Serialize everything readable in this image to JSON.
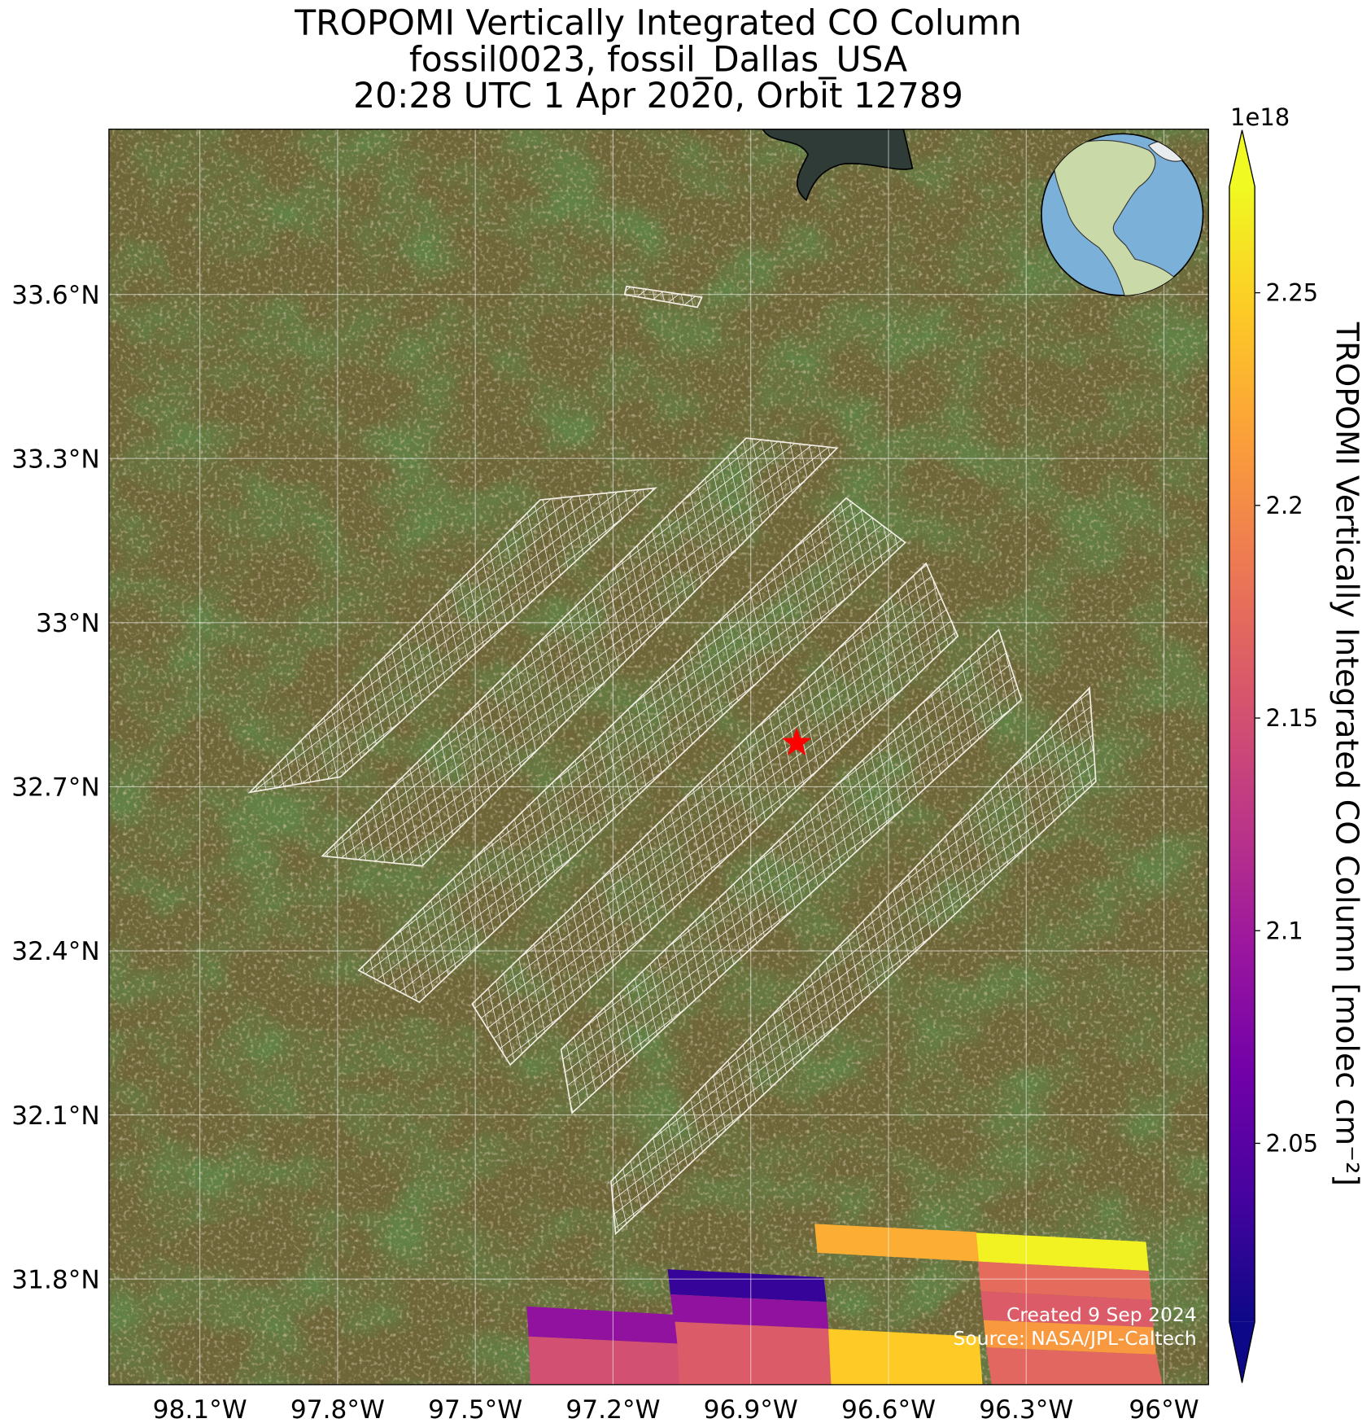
{
  "chart_data": {
    "type": "map",
    "title_lines": [
      "TROPOMI Vertically Integrated CO Column",
      "fossil0023, fossil_Dallas_USA",
      "20:28 UTC 1 Apr 2020, Orbit 12789"
    ],
    "xlim": [
      -98.298,
      -95.903
    ],
    "ylim": [
      31.607,
      33.902
    ],
    "xticks": [
      {
        "value": -98.1,
        "label": "98.1°W"
      },
      {
        "value": -97.8,
        "label": "97.8°W"
      },
      {
        "value": -97.5,
        "label": "97.5°W"
      },
      {
        "value": -97.2,
        "label": "97.2°W"
      },
      {
        "value": -96.9,
        "label": "96.9°W"
      },
      {
        "value": -96.6,
        "label": "96.6°W"
      },
      {
        "value": -96.3,
        "label": "96.3°W"
      },
      {
        "value": -96,
        "label": "96°W"
      }
    ],
    "yticks": [
      {
        "value": 31.8,
        "label": "31.8°N"
      },
      {
        "value": 32.1,
        "label": "32.1°N"
      },
      {
        "value": 32.4,
        "label": "32.4°N"
      },
      {
        "value": 32.7,
        "label": "32.7°N"
      },
      {
        "value": 33,
        "label": "33°N"
      },
      {
        "value": 33.3,
        "label": "33.3°N"
      },
      {
        "value": 33.6,
        "label": "33.6°N"
      }
    ],
    "grid": true,
    "site": {
      "lon": -96.8,
      "lat": 32.78,
      "color": "#ff0000"
    },
    "colormap": "plasma",
    "clim": [
      2.008,
      2.275
    ],
    "cticks": [
      2.05,
      2.1,
      2.15,
      2.2,
      2.25
    ],
    "colorbar_offset_label": "1e18",
    "colorbar_label": "TROPOMI Vertically Integrated CO Column [molec cm⁻²]",
    "pixels": [
      {
        "lon": [
          -96.415,
          -96.039,
          -96.033,
          -96.405
        ],
        "lat": [
          31.885,
          31.868,
          31.815,
          31.832
        ],
        "value": 2.27
      },
      {
        "lon": [
          -96.761,
          -96.409,
          -96.403,
          -96.755
        ],
        "lat": [
          31.901,
          31.886,
          31.832,
          31.848
        ],
        "value": 2.225
      },
      {
        "lon": [
          -96.405,
          -96.033,
          -96.027,
          -96.399
        ],
        "lat": [
          31.832,
          31.815,
          31.762,
          31.778
        ],
        "value": 2.175
      },
      {
        "lon": [
          -96.399,
          -96.027,
          -96.023,
          -96.393
        ],
        "lat": [
          31.778,
          31.762,
          31.712,
          31.725
        ],
        "value": 2.16
      },
      {
        "lon": [
          -96.393,
          -96.023,
          -96.017,
          -96.387
        ],
        "lat": [
          31.725,
          31.712,
          31.662,
          31.675
        ],
        "value": 2.21
      },
      {
        "lon": [
          -96.387,
          -96.017,
          -96.003,
          -96.375
        ],
        "lat": [
          31.675,
          31.662,
          31.605,
          31.605
        ],
        "value": 2.17
      },
      {
        "lon": [
          -97.081,
          -96.741,
          -96.735,
          -97.075
        ],
        "lat": [
          31.818,
          31.803,
          31.758,
          31.772
        ],
        "value": 2.03
      },
      {
        "lon": [
          -97.075,
          -96.735,
          -96.731,
          -97.067
        ],
        "lat": [
          31.772,
          31.758,
          31.709,
          31.722
        ],
        "value": 2.09
      },
      {
        "lon": [
          -97.067,
          -96.731,
          -96.725,
          -97.06
        ],
        "lat": [
          31.722,
          31.709,
          31.605,
          31.605
        ],
        "value": 2.16
      },
      {
        "lon": [
          -97.388,
          -97.067,
          -97.06,
          -97.384
        ],
        "lat": [
          31.75,
          31.735,
          31.682,
          31.695
        ],
        "value": 2.09
      },
      {
        "lon": [
          -97.384,
          -97.06,
          -97.056,
          -97.38
        ],
        "lat": [
          31.695,
          31.682,
          31.605,
          31.605
        ],
        "value": 2.15
      },
      {
        "lon": [
          -96.731,
          -96.403,
          -96.395,
          -96.725
        ],
        "lat": [
          31.709,
          31.695,
          31.605,
          31.605
        ],
        "value": 2.245
      }
    ],
    "notes": [
      "Created 9 Sep 2024",
      "Source: NASA/JPL-Caltech"
    ]
  }
}
